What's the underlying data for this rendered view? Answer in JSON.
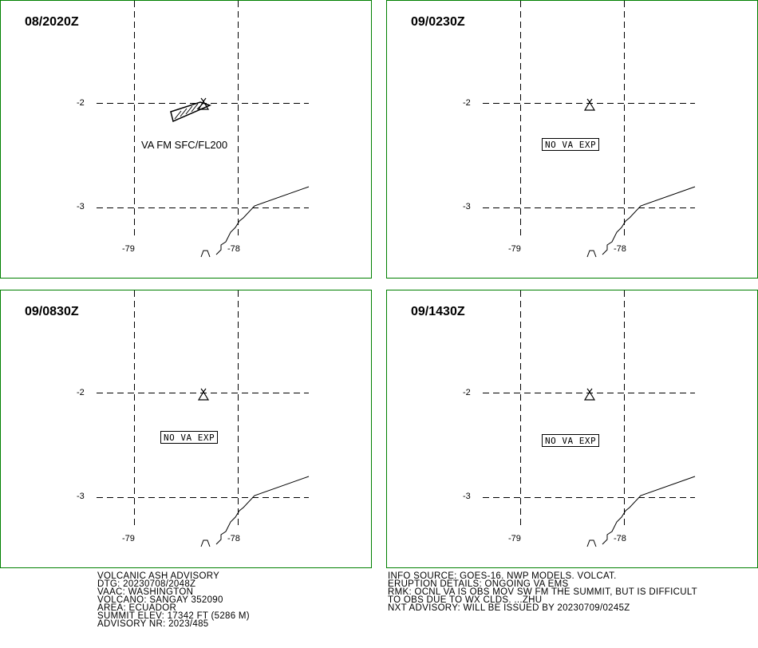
{
  "panels": [
    {
      "time": "08/2020Z",
      "label": "VA FM SFC/FL200",
      "boxed": false,
      "has_ash": true
    },
    {
      "time": "09/0230Z",
      "label": "NO VA EXP",
      "boxed": true,
      "has_ash": false
    },
    {
      "time": "09/0830Z",
      "label": "NO VA EXP",
      "boxed": true,
      "has_ash": false
    },
    {
      "time": "09/1430Z",
      "label": "NO VA EXP",
      "boxed": true,
      "has_ash": false
    }
  ],
  "axes": {
    "lat_top": "-2",
    "lat_bottom": "-3",
    "lon_left": "-79",
    "lon_right": "-78"
  },
  "advisory_left": [
    "VOLCANIC ASH ADVISORY",
    "DTG: 20230708/2048Z",
    "VAAC: WASHINGTON",
    "VOLCANO: SANGAY 352090",
    "AREA: ECUADOR",
    "SUMMIT ELEV: 17342 FT (5286 M)",
    "ADVISORY NR: 2023/485"
  ],
  "advisory_right": [
    "INFO SOURCE: GOES-16. NWP MODELS. VOLCAT.",
    "ERUPTION DETAILS: ONGOING VA EMS",
    "RMK: OCNL VA IS OBS MOV SW FM THE SUMMIT, BUT IS DIFFICULT",
    "TO OBS DUE TO WX CLDS. ...ZHU",
    "NXT ADVISORY: WILL BE ISSUED BY 20230709/0245Z"
  ],
  "colors": {
    "panel_border": "#008000",
    "lines": "#000000"
  }
}
